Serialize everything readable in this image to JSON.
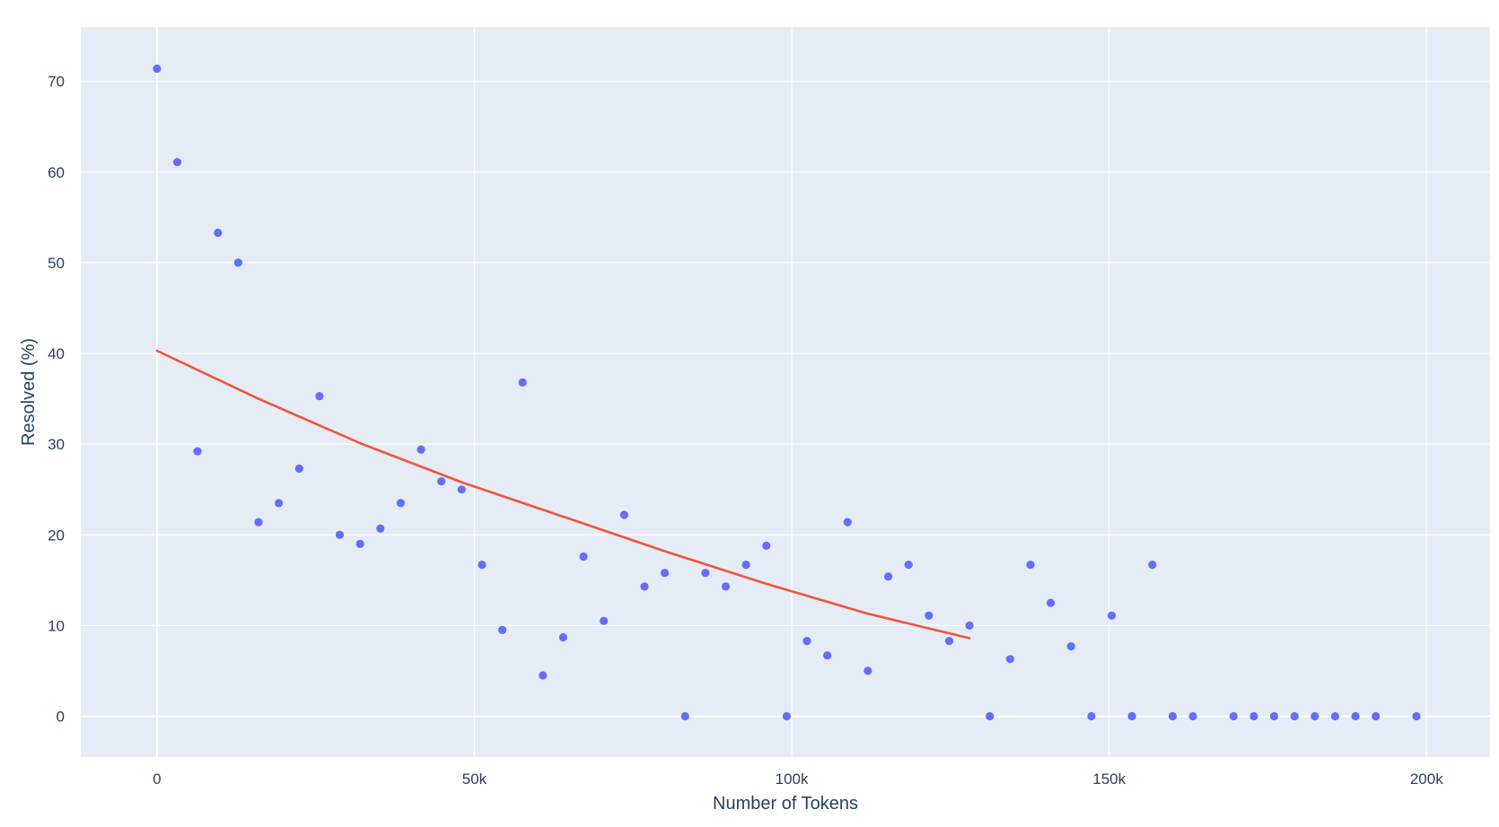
{
  "chart_data": {
    "type": "scatter",
    "title": "",
    "xlabel": "Number of Tokens",
    "ylabel": "Resolved (%)",
    "xlim": [
      -12000,
      210000
    ],
    "ylim": [
      -4.5,
      76
    ],
    "grid": true,
    "x_ticks": [
      {
        "value": 0,
        "label": "0"
      },
      {
        "value": 50000,
        "label": "50k"
      },
      {
        "value": 100000,
        "label": "100k"
      },
      {
        "value": 150000,
        "label": "150k"
      },
      {
        "value": 200000,
        "label": "200k"
      }
    ],
    "y_ticks": [
      {
        "value": 0,
        "label": "0"
      },
      {
        "value": 10,
        "label": "10"
      },
      {
        "value": 20,
        "label": "20"
      },
      {
        "value": 30,
        "label": "30"
      },
      {
        "value": 40,
        "label": "40"
      },
      {
        "value": 50,
        "label": "50"
      },
      {
        "value": 60,
        "label": "60"
      },
      {
        "value": 70,
        "label": "70"
      }
    ],
    "colors": {
      "plot_background": "#e5ecf6",
      "gridline": "#ffffff",
      "points": "#636efa",
      "trend_line": "#ef553b",
      "text": "#2a3f5f"
    },
    "series": [
      {
        "type": "scatter",
        "points": [
          [
            0,
            71.4
          ],
          [
            3200,
            61.1
          ],
          [
            6400,
            29.2
          ],
          [
            9600,
            53.3
          ],
          [
            12800,
            50.0
          ],
          [
            16000,
            21.4
          ],
          [
            19200,
            23.5
          ],
          [
            22400,
            27.3
          ],
          [
            25600,
            35.3
          ],
          [
            28800,
            20.0
          ],
          [
            32000,
            19.0
          ],
          [
            35200,
            20.7
          ],
          [
            38400,
            23.5
          ],
          [
            41600,
            29.4
          ],
          [
            44800,
            25.9
          ],
          [
            48000,
            25.0
          ],
          [
            51200,
            16.7
          ],
          [
            54400,
            9.5
          ],
          [
            57600,
            36.8
          ],
          [
            60800,
            4.5
          ],
          [
            64000,
            8.7
          ],
          [
            67200,
            17.6
          ],
          [
            70400,
            10.5
          ],
          [
            73600,
            22.2
          ],
          [
            76800,
            14.3
          ],
          [
            80000,
            15.8
          ],
          [
            83200,
            0
          ],
          [
            86400,
            15.8
          ],
          [
            89600,
            14.3
          ],
          [
            92800,
            16.7
          ],
          [
            96000,
            18.8
          ],
          [
            99200,
            0
          ],
          [
            102400,
            8.3
          ],
          [
            105600,
            6.7
          ],
          [
            108800,
            21.4
          ],
          [
            112000,
            5.0
          ],
          [
            115200,
            15.4
          ],
          [
            118400,
            16.7
          ],
          [
            121600,
            11.1
          ],
          [
            124800,
            8.3
          ],
          [
            128000,
            10.0
          ],
          [
            131200,
            0
          ],
          [
            134400,
            6.3
          ],
          [
            137600,
            16.7
          ],
          [
            140800,
            12.5
          ],
          [
            144000,
            7.7
          ],
          [
            147200,
            0
          ],
          [
            150400,
            11.1
          ],
          [
            153600,
            0
          ],
          [
            156800,
            16.7
          ],
          [
            160000,
            0
          ],
          [
            163200,
            0
          ],
          [
            169600,
            0
          ],
          [
            172800,
            0
          ],
          [
            176000,
            0
          ],
          [
            179200,
            0
          ],
          [
            182400,
            0
          ],
          [
            185600,
            0
          ],
          [
            188800,
            0
          ],
          [
            192000,
            0
          ],
          [
            198400,
            0
          ]
        ]
      },
      {
        "type": "line",
        "points": [
          [
            0,
            40.3
          ],
          [
            16000,
            35.0
          ],
          [
            32000,
            30.1
          ],
          [
            48000,
            25.8
          ],
          [
            64000,
            22.0
          ],
          [
            80000,
            18.2
          ],
          [
            96000,
            14.6
          ],
          [
            112000,
            11.3
          ],
          [
            128000,
            8.6
          ]
        ]
      }
    ]
  }
}
